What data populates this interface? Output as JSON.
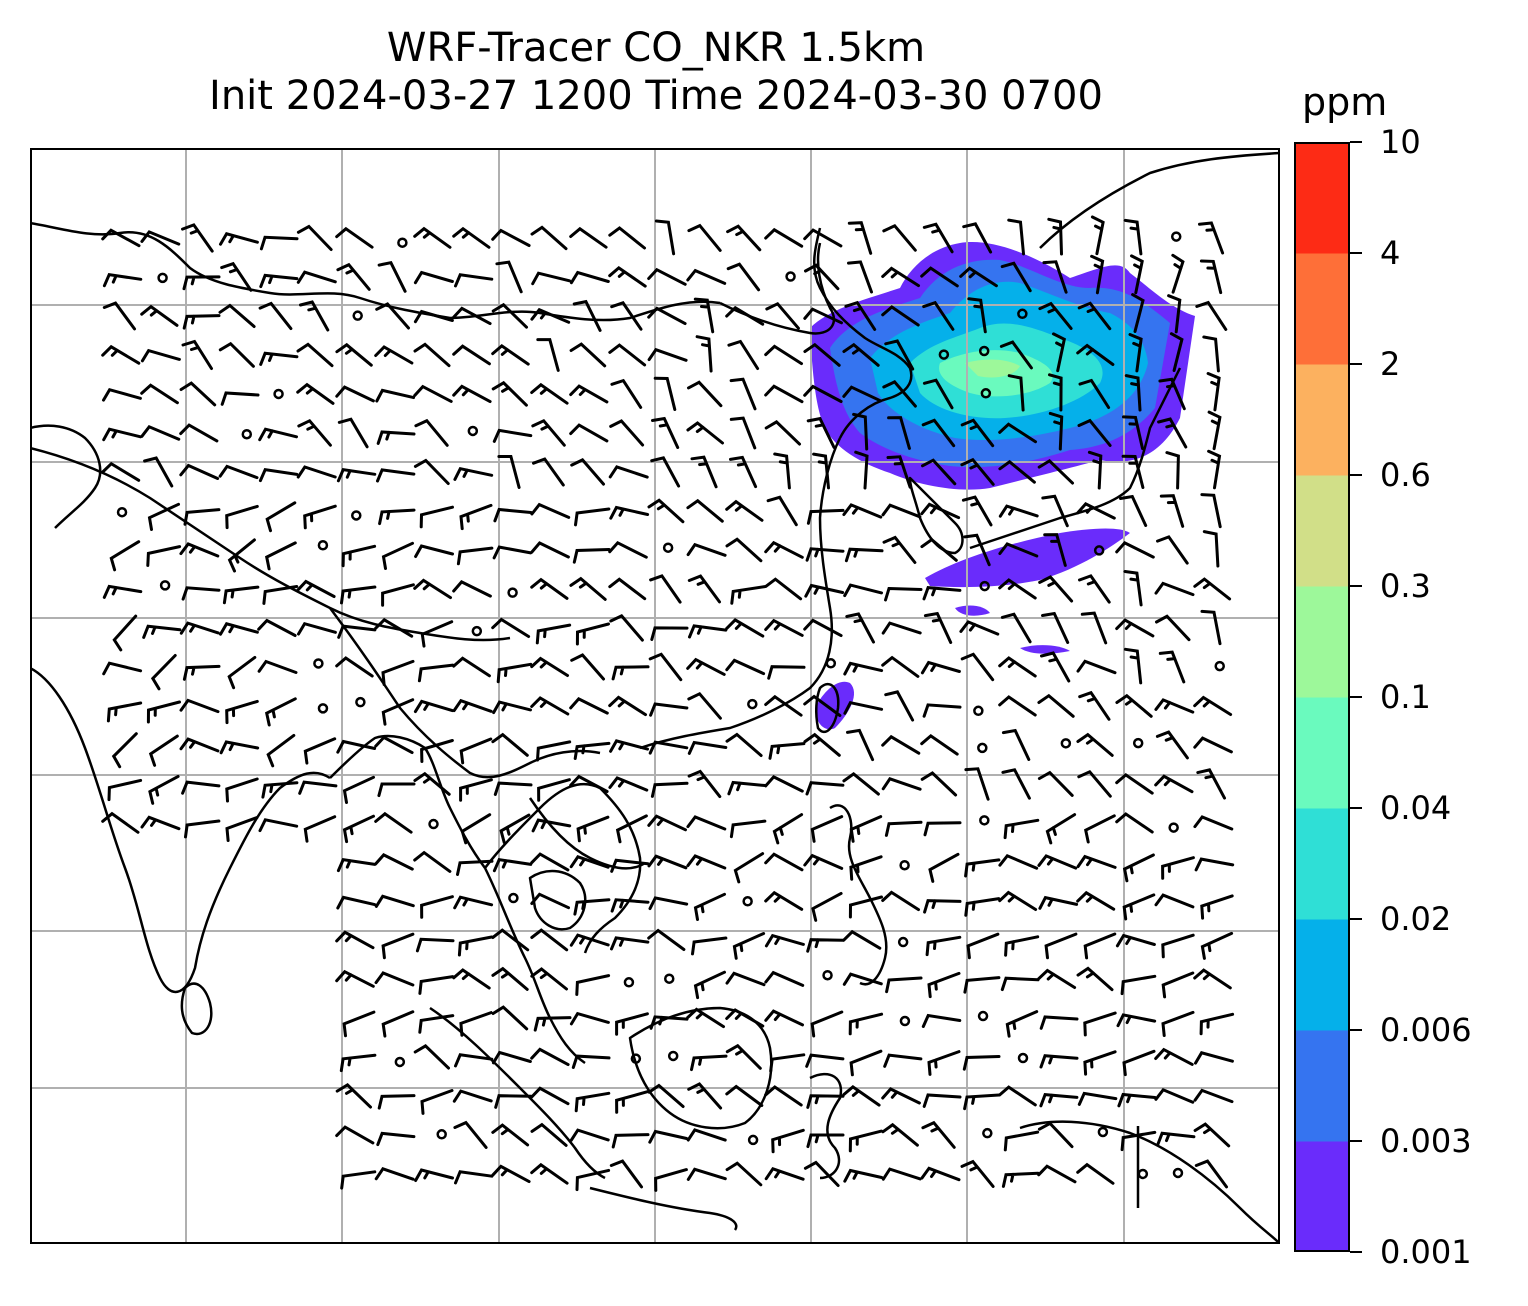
{
  "title": {
    "line1": "WRF-Tracer CO_NKR 1.5km",
    "line2": "Init 2024-03-27 1200 Time 2024-03-30 0700"
  },
  "colorbar": {
    "unit": "ppm",
    "labels": [
      "10",
      "4",
      "2",
      "0.6",
      "0.3",
      "0.1",
      "0.04",
      "0.02",
      "0.006",
      "0.003",
      "0.001"
    ],
    "colors": [
      "#6a2cfb",
      "#3574f0",
      "#05b0ea",
      "#2fdfd6",
      "#6afabe",
      "#9df89a",
      "#d1df88",
      "#fcb15f",
      "#fe6f38",
      "#fd2b15"
    ]
  },
  "map": {
    "gridlines": "on",
    "coastline_color": "#000000",
    "grid_color": "#b0b0b0",
    "overlay": "wind barbs"
  }
}
